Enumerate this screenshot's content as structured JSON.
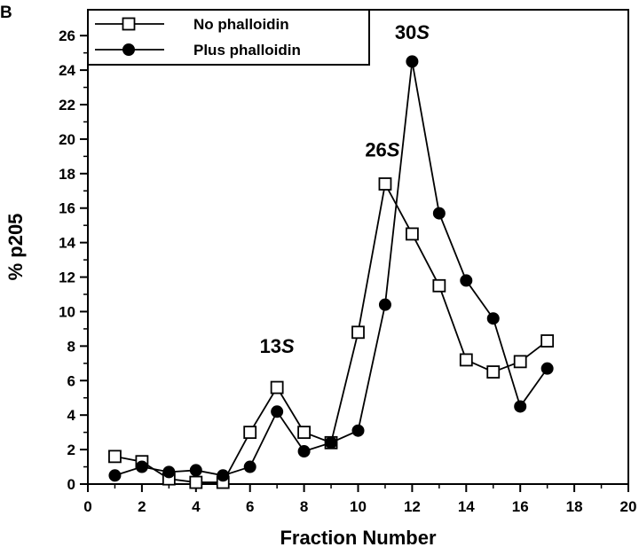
{
  "panel_label": "B",
  "chart_data": {
    "type": "line",
    "xlabel": "Fraction Number",
    "ylabel": "% p205",
    "xlim": [
      0,
      20
    ],
    "ylim": [
      0,
      27.5
    ],
    "xticks": [
      0,
      2,
      4,
      6,
      8,
      10,
      12,
      14,
      16,
      18,
      20
    ],
    "yticks": [
      0,
      2,
      4,
      6,
      8,
      10,
      12,
      14,
      16,
      18,
      20,
      22,
      24,
      26
    ],
    "grid": false,
    "legend_position": "top-left",
    "series": [
      {
        "name": "No phalloidin",
        "marker": "open-square",
        "color": "#000000",
        "x": [
          1,
          2,
          3,
          4,
          5,
          6,
          7,
          8,
          9,
          10,
          11,
          12,
          13,
          14,
          15,
          16,
          17
        ],
        "y": [
          1.6,
          1.3,
          0.3,
          0.1,
          0.1,
          3.0,
          5.6,
          3.0,
          2.4,
          8.8,
          17.4,
          14.5,
          11.5,
          7.2,
          6.5,
          7.1,
          8.3
        ]
      },
      {
        "name": "Plus phalloidin",
        "marker": "filled-circle",
        "color": "#000000",
        "x": [
          1,
          2,
          3,
          4,
          5,
          6,
          7,
          8,
          9,
          10,
          11,
          12,
          13,
          14,
          15,
          16,
          17
        ],
        "y": [
          0.5,
          1.0,
          0.7,
          0.8,
          0.5,
          1.0,
          4.2,
          1.9,
          2.4,
          3.1,
          10.4,
          24.5,
          15.7,
          11.8,
          9.6,
          4.5,
          6.7
        ]
      }
    ],
    "annotations": [
      {
        "number": "13",
        "unit": "S",
        "x": 7.0,
        "y": 7.6
      },
      {
        "number": "26",
        "unit": "S",
        "x": 10.9,
        "y": 19.0
      },
      {
        "number": "30",
        "unit": "S",
        "x": 12.0,
        "y": 25.8
      }
    ]
  }
}
